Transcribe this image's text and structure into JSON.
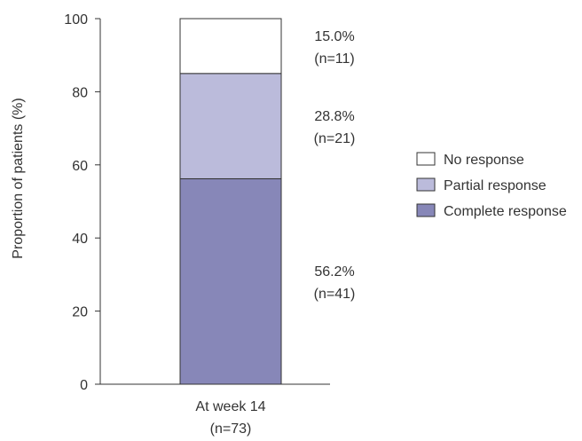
{
  "chart_data": {
    "type": "bar",
    "stacked": true,
    "categories": [
      "At week 14"
    ],
    "category_sublabels": [
      "(n=73)"
    ],
    "ylabel": "Proportion of patients (%)",
    "xlabel": "",
    "title": "",
    "ylim": [
      0,
      100
    ],
    "yticks": [
      0,
      20,
      40,
      60,
      80,
      100
    ],
    "grid": false,
    "legend_position": "right",
    "series": [
      {
        "name": "Complete response",
        "values": [
          56.2
        ],
        "color": "#8787b8",
        "label": "56.2%",
        "count": "(n=41)"
      },
      {
        "name": "Partial response",
        "values": [
          28.8
        ],
        "color": "#bbbbdb",
        "label": "28.8%",
        "count": "(n=21)"
      },
      {
        "name": "No response",
        "values": [
          15.0
        ],
        "color": "#ffffff",
        "label": "15.0%",
        "count": "(n=11)"
      }
    ],
    "legend_order": [
      "No response",
      "Partial response",
      "Complete response"
    ]
  }
}
